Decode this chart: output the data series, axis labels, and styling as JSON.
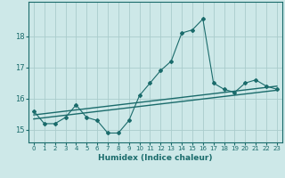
{
  "xlabel": "Humidex (Indice chaleur)",
  "ylabel": "",
  "background_color": "#cde8e8",
  "line_color": "#1a6b6b",
  "grid_color": "#aacccc",
  "x_values": [
    0,
    1,
    2,
    3,
    4,
    5,
    6,
    7,
    8,
    9,
    10,
    11,
    12,
    13,
    14,
    15,
    16,
    17,
    18,
    19,
    20,
    21,
    22,
    23
  ],
  "y_main": [
    15.6,
    15.2,
    15.2,
    15.4,
    15.8,
    15.4,
    15.3,
    14.9,
    14.9,
    15.3,
    16.1,
    16.5,
    16.9,
    17.2,
    18.1,
    18.2,
    18.55,
    16.5,
    16.3,
    16.2,
    16.5,
    16.6,
    16.4,
    16.3
  ],
  "y_trend1": [
    15.48,
    15.52,
    15.56,
    15.6,
    15.64,
    15.68,
    15.72,
    15.76,
    15.8,
    15.84,
    15.88,
    15.92,
    15.96,
    16.0,
    16.04,
    16.08,
    16.12,
    16.16,
    16.2,
    16.24,
    16.28,
    16.32,
    16.36,
    16.4
  ],
  "y_trend2": [
    15.35,
    15.39,
    15.43,
    15.47,
    15.51,
    15.55,
    15.59,
    15.63,
    15.67,
    15.71,
    15.75,
    15.79,
    15.83,
    15.87,
    15.91,
    15.95,
    15.99,
    16.03,
    16.07,
    16.11,
    16.15,
    16.19,
    16.23,
    16.27
  ],
  "ylim": [
    14.6,
    19.1
  ],
  "xlim": [
    -0.5,
    23.5
  ],
  "yticks": [
    15,
    16,
    17,
    18
  ],
  "xticks": [
    0,
    1,
    2,
    3,
    4,
    5,
    6,
    7,
    8,
    9,
    10,
    11,
    12,
    13,
    14,
    15,
    16,
    17,
    18,
    19,
    20,
    21,
    22,
    23
  ]
}
